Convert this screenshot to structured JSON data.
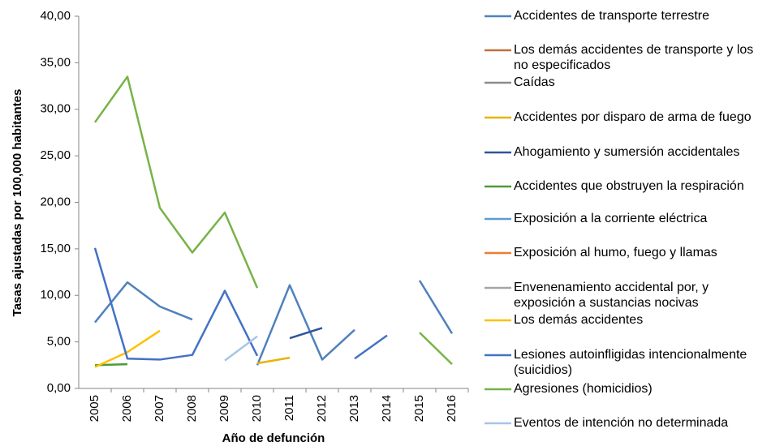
{
  "chart_data": {
    "type": "line",
    "y_label": "Tasas ajustadas por 100,000 habitantes",
    "x_label": "Año de defunción",
    "categories": [
      "2005",
      "2006",
      "2007",
      "2008",
      "2009",
      "2010",
      "2011",
      "2012",
      "2013",
      "2014",
      "2015",
      "2016"
    ],
    "ylim": [
      0,
      40
    ],
    "yticks": [
      {
        "value": 0,
        "label": "0,00"
      },
      {
        "value": 5,
        "label": "5,00"
      },
      {
        "value": 10,
        "label": "10,00"
      },
      {
        "value": 15,
        "label": "15,00"
      },
      {
        "value": 20,
        "label": "20,00"
      },
      {
        "value": 25,
        "label": "25,00"
      },
      {
        "value": 30,
        "label": "30,00"
      },
      {
        "value": 35,
        "label": "35,00"
      },
      {
        "value": 40,
        "label": "40,00"
      }
    ],
    "series": [
      {
        "name": "Accidentes de transporte terrestre",
        "color": "#4f81bd",
        "values": [
          7.1,
          11.4,
          8.8,
          7.4,
          null,
          2.5,
          11.1,
          3.1,
          6.3,
          null,
          11.6,
          5.9
        ]
      },
      {
        "name": "Los demás accidentes de transporte y los no especificados",
        "color": "#c0703d",
        "values": [
          null,
          null,
          null,
          null,
          null,
          null,
          null,
          null,
          null,
          null,
          null,
          null
        ]
      },
      {
        "name": "Caídas",
        "color": "#8c8c8c",
        "values": [
          null,
          null,
          null,
          null,
          null,
          null,
          null,
          null,
          null,
          null,
          null,
          null
        ]
      },
      {
        "name": "Accidentes por disparo de arma de fuego",
        "color": "#e6b400",
        "values": [
          null,
          null,
          null,
          null,
          null,
          2.7,
          3.3,
          null,
          null,
          null,
          null,
          null
        ]
      },
      {
        "name": "Ahogamiento y sumersión accidentales",
        "color": "#2f5597",
        "values": [
          null,
          null,
          null,
          null,
          null,
          null,
          5.4,
          6.5,
          null,
          null,
          null,
          null
        ]
      },
      {
        "name": "Accidentes que obstruyen la respiración",
        "color": "#4e9a37",
        "values": [
          2.5,
          2.6,
          null,
          null,
          null,
          null,
          null,
          null,
          null,
          null,
          null,
          null
        ]
      },
      {
        "name": "Exposición a la corriente eléctrica",
        "color": "#5b9bd5",
        "values": [
          null,
          null,
          null,
          null,
          null,
          null,
          null,
          null,
          null,
          null,
          null,
          null
        ]
      },
      {
        "name": "Exposición al humo, fuego y llamas",
        "color": "#ed7d31",
        "values": [
          null,
          null,
          null,
          null,
          null,
          null,
          null,
          null,
          null,
          null,
          null,
          null
        ]
      },
      {
        "name": "Envenenamiento accidental por, y exposición a sustancias nocivas",
        "color": "#a5a5a5",
        "values": [
          null,
          null,
          null,
          null,
          null,
          null,
          null,
          null,
          null,
          null,
          null,
          null
        ]
      },
      {
        "name": "Los demás accidentes",
        "color": "#ffc000",
        "values": [
          2.3,
          3.9,
          6.2,
          null,
          null,
          null,
          null,
          null,
          null,
          null,
          null,
          null
        ]
      },
      {
        "name": "Lesiones autoinfligidas intencionalmente (suicidios)",
        "color": "#4472c4",
        "values": [
          15.1,
          3.2,
          3.1,
          3.6,
          10.5,
          3.5,
          null,
          null,
          3.2,
          5.7,
          null,
          null
        ]
      },
      {
        "name": "Agresiones (homicidios)",
        "color": "#77b347",
        "values": [
          28.6,
          33.5,
          19.4,
          14.6,
          18.9,
          10.8,
          null,
          null,
          null,
          null,
          6.0,
          2.6
        ]
      },
      {
        "name": "Eventos de intención no determinada",
        "color": "#a9c4e6",
        "values": [
          null,
          null,
          null,
          null,
          3.0,
          5.6,
          null,
          null,
          null,
          null,
          null,
          null
        ]
      }
    ]
  }
}
